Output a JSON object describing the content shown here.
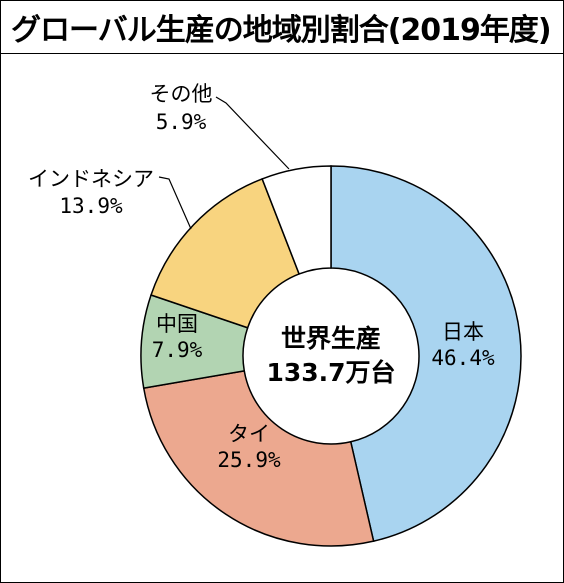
{
  "chart_data": {
    "type": "pie",
    "donut": true,
    "title": "グローバル生産の地域別割合(2019年度)",
    "center_label": [
      "世界生産",
      "133.7万台"
    ],
    "slices": [
      {
        "name": "日本",
        "value": 46.4,
        "value_label": "46.4%",
        "color": "#a9d4f0",
        "label_position": "inside"
      },
      {
        "name": "タイ",
        "value": 25.9,
        "value_label": "25.9%",
        "color": "#eca88f",
        "label_position": "inside"
      },
      {
        "name": "中国",
        "value": 7.9,
        "value_label": "7.9%",
        "color": "#b2d4b2",
        "label_position": "inside"
      },
      {
        "name": "インドネシア",
        "value": 13.9,
        "value_label": "13.9%",
        "color": "#f8d47f",
        "label_position": "outside"
      },
      {
        "name": "その他",
        "value": 5.9,
        "value_label": "5.9%",
        "color": "#ffffff",
        "label_position": "outside"
      }
    ]
  }
}
